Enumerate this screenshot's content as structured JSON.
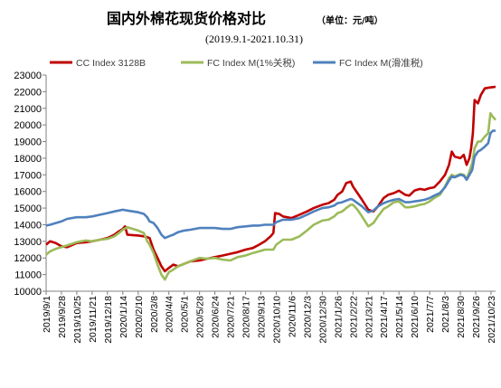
{
  "chart_data": {
    "type": "line",
    "title": "国内外棉花现货价格对比",
    "unit_note": "（单位：元/吨）",
    "subtitle": "(2019.9.1-2021.10.31)",
    "xlabel": "",
    "ylabel": "",
    "ylim": [
      10000,
      23000
    ],
    "yticks": [
      10000,
      11000,
      12000,
      13000,
      14000,
      15000,
      16000,
      17000,
      18000,
      19000,
      20000,
      21000,
      22000,
      23000
    ],
    "x_range": [
      "2019-09-01",
      "2021-10-31"
    ],
    "x_tick_labels": [
      "2019/9/1",
      "2019/9/28",
      "2019/10/25",
      "2019/11/21",
      "2019/12/18",
      "2020/1/14",
      "2020/2/10",
      "2020/3/8",
      "2020/4/4",
      "2020/5/1",
      "2020/5/28",
      "2020/6/24",
      "2020/7/21",
      "2020/8/17",
      "2020/9/13",
      "2020/10/10",
      "2020/11/6",
      "2020/12/3",
      "2020/12/30",
      "2021/1/26",
      "2021/2/22",
      "2021/3/21",
      "2021/4/17",
      "2021/5/14",
      "2021/6/10",
      "2021/7/7",
      "2021/8/3",
      "2021/8/30",
      "2021/9/26",
      "2021/10/23"
    ],
    "grid": false,
    "legend_position": "top",
    "series": [
      {
        "name": "CC Index 3128B",
        "color": "#C00000",
        "points": [
          [
            "2019-09-01",
            12800
          ],
          [
            "2019-09-08",
            13000
          ],
          [
            "2019-09-18",
            12900
          ],
          [
            "2019-09-28",
            12700
          ],
          [
            "2019-10-08",
            12650
          ],
          [
            "2019-10-15",
            12750
          ],
          [
            "2019-10-25",
            12900
          ],
          [
            "2019-11-10",
            12950
          ],
          [
            "2019-11-21",
            13000
          ],
          [
            "2019-12-05",
            13100
          ],
          [
            "2019-12-18",
            13200
          ],
          [
            "2019-12-30",
            13400
          ],
          [
            "2020-01-07",
            13600
          ],
          [
            "2020-01-14",
            13750
          ],
          [
            "2020-01-18",
            13900
          ],
          [
            "2020-01-22",
            13400
          ],
          [
            "2020-02-10",
            13350
          ],
          [
            "2020-02-20",
            13300
          ],
          [
            "2020-02-26",
            13250
          ],
          [
            "2020-03-01",
            13200
          ],
          [
            "2020-03-05",
            12800
          ],
          [
            "2020-03-08",
            12500
          ],
          [
            "2020-03-15",
            12000
          ],
          [
            "2020-03-22",
            11500
          ],
          [
            "2020-03-28",
            11200
          ],
          [
            "2020-04-04",
            11400
          ],
          [
            "2020-04-12",
            11600
          ],
          [
            "2020-04-20",
            11500
          ],
          [
            "2020-05-01",
            11650
          ],
          [
            "2020-05-12",
            11800
          ],
          [
            "2020-05-28",
            11850
          ],
          [
            "2020-06-10",
            11950
          ],
          [
            "2020-06-24",
            12050
          ],
          [
            "2020-07-08",
            12150
          ],
          [
            "2020-07-21",
            12250
          ],
          [
            "2020-08-03",
            12350
          ],
          [
            "2020-08-17",
            12500
          ],
          [
            "2020-08-30",
            12600
          ],
          [
            "2020-09-10",
            12800
          ],
          [
            "2020-09-20",
            13000
          ],
          [
            "2020-09-30",
            13300
          ],
          [
            "2020-10-05",
            13500
          ],
          [
            "2020-10-08",
            14700
          ],
          [
            "2020-10-15",
            14650
          ],
          [
            "2020-10-22",
            14500
          ],
          [
            "2020-11-06",
            14400
          ],
          [
            "2020-11-20",
            14600
          ],
          [
            "2020-12-03",
            14800
          ],
          [
            "2020-12-15",
            15000
          ],
          [
            "2020-12-30",
            15200
          ],
          [
            "2021-01-10",
            15300
          ],
          [
            "2021-01-20",
            15500
          ],
          [
            "2021-01-26",
            15800
          ],
          [
            "2021-02-03",
            16000
          ],
          [
            "2021-02-10",
            16500
          ],
          [
            "2021-02-18",
            16600
          ],
          [
            "2021-02-22",
            16300
          ],
          [
            "2021-03-02",
            15900
          ],
          [
            "2021-03-10",
            15500
          ],
          [
            "2021-03-21",
            14900
          ],
          [
            "2021-03-30",
            14800
          ],
          [
            "2021-04-07",
            15100
          ],
          [
            "2021-04-17",
            15600
          ],
          [
            "2021-04-25",
            15800
          ],
          [
            "2021-05-05",
            15900
          ],
          [
            "2021-05-14",
            16050
          ],
          [
            "2021-05-25",
            15800
          ],
          [
            "2021-06-01",
            15750
          ],
          [
            "2021-06-10",
            16050
          ],
          [
            "2021-06-20",
            16150
          ],
          [
            "2021-06-28",
            16100
          ],
          [
            "2021-07-07",
            16200
          ],
          [
            "2021-07-15",
            16250
          ],
          [
            "2021-07-25",
            16600
          ],
          [
            "2021-08-03",
            17000
          ],
          [
            "2021-08-10",
            17600
          ],
          [
            "2021-08-15",
            18400
          ],
          [
            "2021-08-20",
            18100
          ],
          [
            "2021-08-30",
            18000
          ],
          [
            "2021-09-05",
            18200
          ],
          [
            "2021-09-10",
            17600
          ],
          [
            "2021-09-15",
            18000
          ],
          [
            "2021-09-18",
            18600
          ],
          [
            "2021-09-21",
            19500
          ],
          [
            "2021-09-24",
            21500
          ],
          [
            "2021-09-30",
            21300
          ],
          [
            "2021-10-05",
            21800
          ],
          [
            "2021-10-12",
            22200
          ],
          [
            "2021-10-20",
            22250
          ],
          [
            "2021-10-31",
            22300
          ]
        ]
      },
      {
        "name": "FC Index M(1%关税)",
        "color": "#9BBB59",
        "points": [
          [
            "2019-09-01",
            12200
          ],
          [
            "2019-09-08",
            12400
          ],
          [
            "2019-09-18",
            12550
          ],
          [
            "2019-09-28",
            12650
          ],
          [
            "2019-10-08",
            12750
          ],
          [
            "2019-10-25",
            12950
          ],
          [
            "2019-11-10",
            13050
          ],
          [
            "2019-11-21",
            13000
          ],
          [
            "2019-12-05",
            13100
          ],
          [
            "2019-12-18",
            13150
          ],
          [
            "2019-12-30",
            13300
          ],
          [
            "2020-01-07",
            13500
          ],
          [
            "2020-01-14",
            13700
          ],
          [
            "2020-01-22",
            13850
          ],
          [
            "2020-02-10",
            13650
          ],
          [
            "2020-02-20",
            13500
          ],
          [
            "2020-02-26",
            13000
          ],
          [
            "2020-03-01",
            12800
          ],
          [
            "2020-03-08",
            12300
          ],
          [
            "2020-03-15",
            11600
          ],
          [
            "2020-03-22",
            11000
          ],
          [
            "2020-03-28",
            10700
          ],
          [
            "2020-04-04",
            11150
          ],
          [
            "2020-04-12",
            11300
          ],
          [
            "2020-04-20",
            11500
          ],
          [
            "2020-05-01",
            11650
          ],
          [
            "2020-05-12",
            11800
          ],
          [
            "2020-05-28",
            12000
          ],
          [
            "2020-06-10",
            11950
          ],
          [
            "2020-06-24",
            12000
          ],
          [
            "2020-07-08",
            11900
          ],
          [
            "2020-07-21",
            11850
          ],
          [
            "2020-08-03",
            12050
          ],
          [
            "2020-08-17",
            12150
          ],
          [
            "2020-08-30",
            12300
          ],
          [
            "2020-09-10",
            12400
          ],
          [
            "2020-09-20",
            12500
          ],
          [
            "2020-10-05",
            12500
          ],
          [
            "2020-10-10",
            12800
          ],
          [
            "2020-10-22",
            13100
          ],
          [
            "2020-11-06",
            13100
          ],
          [
            "2020-11-20",
            13300
          ],
          [
            "2020-12-03",
            13650
          ],
          [
            "2020-12-15",
            14000
          ],
          [
            "2020-12-30",
            14250
          ],
          [
            "2021-01-10",
            14300
          ],
          [
            "2021-01-20",
            14500
          ],
          [
            "2021-01-26",
            14700
          ],
          [
            "2021-02-03",
            14800
          ],
          [
            "2021-02-10",
            15000
          ],
          [
            "2021-02-18",
            15200
          ],
          [
            "2021-02-22",
            15200
          ],
          [
            "2021-03-02",
            14900
          ],
          [
            "2021-03-10",
            14500
          ],
          [
            "2021-03-21",
            13900
          ],
          [
            "2021-03-30",
            14100
          ],
          [
            "2021-04-07",
            14500
          ],
          [
            "2021-04-17",
            14950
          ],
          [
            "2021-04-25",
            15100
          ],
          [
            "2021-05-05",
            15350
          ],
          [
            "2021-05-14",
            15400
          ],
          [
            "2021-05-25",
            15050
          ],
          [
            "2021-06-01",
            15050
          ],
          [
            "2021-06-10",
            15100
          ],
          [
            "2021-06-20",
            15200
          ],
          [
            "2021-06-28",
            15250
          ],
          [
            "2021-07-07",
            15400
          ],
          [
            "2021-07-15",
            15600
          ],
          [
            "2021-07-25",
            15800
          ],
          [
            "2021-08-03",
            16300
          ],
          [
            "2021-08-10",
            16800
          ],
          [
            "2021-08-15",
            17000
          ],
          [
            "2021-08-20",
            16900
          ],
          [
            "2021-08-30",
            17050
          ],
          [
            "2021-09-05",
            17000
          ],
          [
            "2021-09-10",
            16750
          ],
          [
            "2021-09-15",
            17200
          ],
          [
            "2021-09-20",
            17700
          ],
          [
            "2021-09-24",
            18600
          ],
          [
            "2021-09-30",
            19000
          ],
          [
            "2021-10-05",
            19000
          ],
          [
            "2021-10-12",
            19300
          ],
          [
            "2021-10-18",
            19500
          ],
          [
            "2021-10-22",
            20700
          ],
          [
            "2021-10-26",
            20500
          ],
          [
            "2021-10-31",
            20300
          ]
        ]
      },
      {
        "name": "FC Index M(滑准税)",
        "color": "#4F81BD",
        "points": [
          [
            "2019-09-01",
            13950
          ],
          [
            "2019-09-08",
            14000
          ],
          [
            "2019-09-18",
            14100
          ],
          [
            "2019-09-28",
            14200
          ],
          [
            "2019-10-08",
            14350
          ],
          [
            "2019-10-25",
            14450
          ],
          [
            "2019-11-10",
            14450
          ],
          [
            "2019-11-21",
            14500
          ],
          [
            "2019-12-05",
            14600
          ],
          [
            "2019-12-18",
            14700
          ],
          [
            "2019-12-30",
            14800
          ],
          [
            "2020-01-07",
            14850
          ],
          [
            "2020-01-14",
            14900
          ],
          [
            "2020-01-22",
            14850
          ],
          [
            "2020-02-10",
            14750
          ],
          [
            "2020-02-20",
            14650
          ],
          [
            "2020-02-26",
            14450
          ],
          [
            "2020-03-01",
            14200
          ],
          [
            "2020-03-08",
            14100
          ],
          [
            "2020-03-15",
            13800
          ],
          [
            "2020-03-22",
            13400
          ],
          [
            "2020-03-28",
            13200
          ],
          [
            "2020-04-04",
            13300
          ],
          [
            "2020-04-12",
            13400
          ],
          [
            "2020-04-20",
            13550
          ],
          [
            "2020-05-01",
            13650
          ],
          [
            "2020-05-12",
            13700
          ],
          [
            "2020-05-28",
            13800
          ],
          [
            "2020-06-10",
            13800
          ],
          [
            "2020-06-24",
            13800
          ],
          [
            "2020-07-08",
            13750
          ],
          [
            "2020-07-21",
            13750
          ],
          [
            "2020-08-03",
            13850
          ],
          [
            "2020-08-17",
            13900
          ],
          [
            "2020-08-30",
            13950
          ],
          [
            "2020-09-10",
            13950
          ],
          [
            "2020-09-20",
            14000
          ],
          [
            "2020-10-05",
            14000
          ],
          [
            "2020-10-10",
            14150
          ],
          [
            "2020-10-22",
            14300
          ],
          [
            "2020-11-06",
            14300
          ],
          [
            "2020-11-20",
            14400
          ],
          [
            "2020-12-03",
            14600
          ],
          [
            "2020-12-15",
            14800
          ],
          [
            "2020-12-30",
            15000
          ],
          [
            "2021-01-10",
            15050
          ],
          [
            "2021-01-20",
            15150
          ],
          [
            "2021-01-26",
            15300
          ],
          [
            "2021-02-03",
            15350
          ],
          [
            "2021-02-10",
            15450
          ],
          [
            "2021-02-18",
            15550
          ],
          [
            "2021-02-22",
            15500
          ],
          [
            "2021-03-02",
            15300
          ],
          [
            "2021-03-10",
            15100
          ],
          [
            "2021-03-21",
            14750
          ],
          [
            "2021-03-30",
            14850
          ],
          [
            "2021-04-07",
            15100
          ],
          [
            "2021-04-17",
            15300
          ],
          [
            "2021-04-25",
            15400
          ],
          [
            "2021-05-05",
            15500
          ],
          [
            "2021-05-14",
            15550
          ],
          [
            "2021-05-25",
            15350
          ],
          [
            "2021-06-01",
            15350
          ],
          [
            "2021-06-10",
            15400
          ],
          [
            "2021-06-20",
            15450
          ],
          [
            "2021-06-28",
            15500
          ],
          [
            "2021-07-07",
            15600
          ],
          [
            "2021-07-15",
            15750
          ],
          [
            "2021-07-25",
            15900
          ],
          [
            "2021-08-03",
            16250
          ],
          [
            "2021-08-10",
            16650
          ],
          [
            "2021-08-15",
            16900
          ],
          [
            "2021-08-20",
            16850
          ],
          [
            "2021-08-30",
            17000
          ],
          [
            "2021-09-05",
            16950
          ],
          [
            "2021-09-10",
            16700
          ],
          [
            "2021-09-15",
            17000
          ],
          [
            "2021-09-20",
            17300
          ],
          [
            "2021-09-24",
            18100
          ],
          [
            "2021-09-30",
            18400
          ],
          [
            "2021-10-05",
            18500
          ],
          [
            "2021-10-12",
            18700
          ],
          [
            "2021-10-18",
            18900
          ],
          [
            "2021-10-22",
            19500
          ],
          [
            "2021-10-26",
            19650
          ],
          [
            "2021-10-31",
            19650
          ]
        ]
      }
    ]
  }
}
